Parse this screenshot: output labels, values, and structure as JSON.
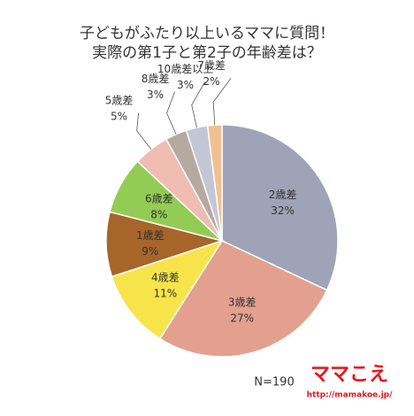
{
  "chart_data": {
    "type": "pie",
    "title": [
      "子どもがふたり以上いるママに質問！",
      "実際の第1子と第2子の年齢差は？"
    ],
    "categories": [
      "2歳差",
      "3歳差",
      "4歳差",
      "1歳差",
      "6歳差",
      "5歳差",
      "8歳差",
      "10歳差以上",
      "7歳差"
    ],
    "values": [
      32,
      27,
      11,
      9,
      8,
      5,
      3,
      3,
      2
    ],
    "value_labels": [
      "32%",
      "27%",
      "11%",
      "9%",
      "8%",
      "5%",
      "3%",
      "3%",
      "2%"
    ],
    "colors": [
      "#9ea3b8",
      "#e3a08e",
      "#f7e44a",
      "#a8652a",
      "#93cc55",
      "#efbdb2",
      "#b5aaa0",
      "#c3c7d5",
      "#f0c090"
    ],
    "note": "N=190",
    "logo": "ママこえ",
    "url": "http://mamakoe.jp/"
  }
}
